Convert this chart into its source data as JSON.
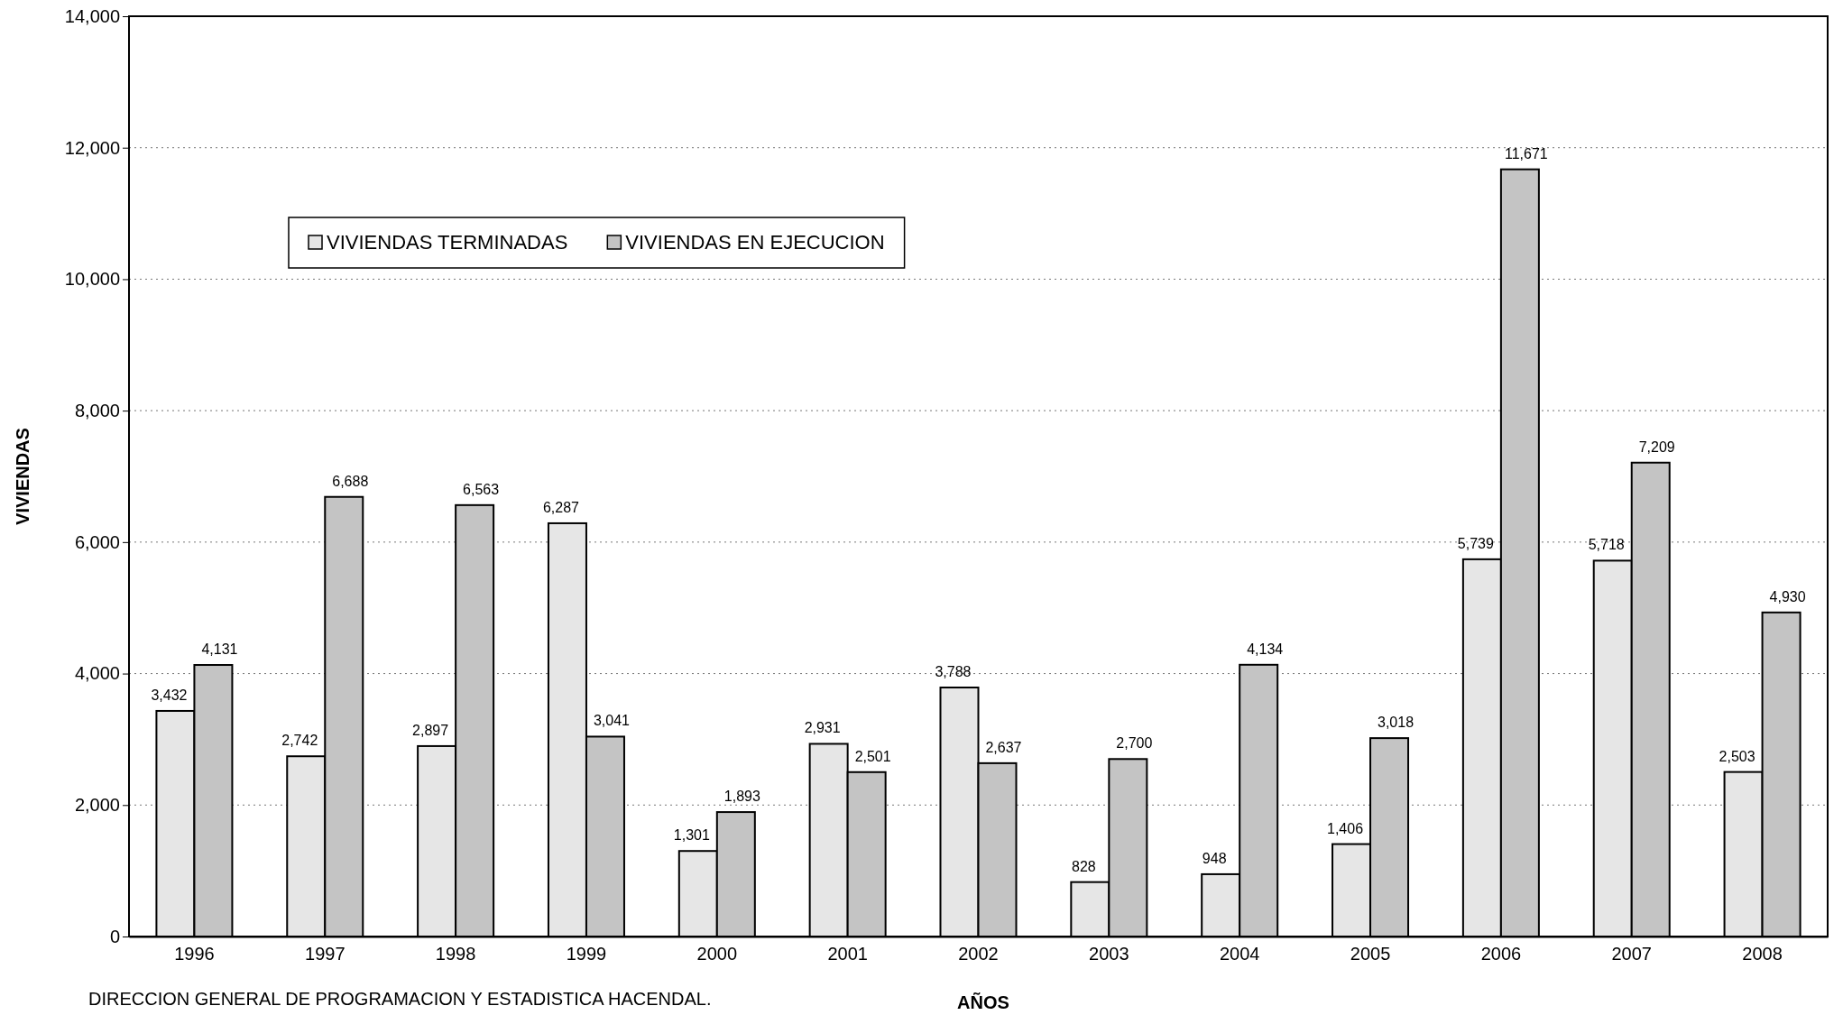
{
  "chart_data": {
    "type": "bar",
    "xlabel": "AÑOS",
    "ylabel": "VIVIENDAS",
    "categories": [
      "1996",
      "1997",
      "1998",
      "1999",
      "2000",
      "2001",
      "2002",
      "2003",
      "2004",
      "2005",
      "2006",
      "2007",
      "2008"
    ],
    "series": [
      {
        "name": "VIVIENDAS TERMINADAS",
        "color": "#e6e6e6",
        "values": [
          3432,
          2742,
          2897,
          6287,
          1301,
          2931,
          3788,
          828,
          948,
          1406,
          5739,
          5718,
          2503
        ],
        "value_labels": [
          "3,432",
          "2,742",
          "2,897",
          "6,287",
          "1,301",
          "2,931",
          "3,788",
          "828",
          "948",
          "1,406",
          "5,739",
          "5,718",
          "2,503"
        ]
      },
      {
        "name": "VIVIENDAS EN EJECUCION",
        "color": "#c4c4c4",
        "values": [
          4131,
          6688,
          6563,
          3041,
          1893,
          2501,
          2637,
          2700,
          4134,
          3018,
          11671,
          7209,
          4930
        ],
        "value_labels": [
          "4,131",
          "6,688",
          "6,563",
          "3,041",
          "1,893",
          "2,501",
          "2,637",
          "2,700",
          "4,134",
          "3,018",
          "11,671",
          "7,209",
          "4,930"
        ]
      }
    ],
    "ylim": [
      0,
      14000
    ],
    "yticks": [
      {
        "value": 0,
        "label": "0"
      },
      {
        "value": 2000,
        "label": "2,000"
      },
      {
        "value": 4000,
        "label": "4,000"
      },
      {
        "value": 6000,
        "label": "6,000"
      },
      {
        "value": 8000,
        "label": "8,000"
      },
      {
        "value": 10000,
        "label": "10,000"
      },
      {
        "value": 12000,
        "label": "12,000"
      },
      {
        "value": 14000,
        "label": "14,000"
      }
    ],
    "grid": "y",
    "legend": "top left",
    "annotations": [
      "DIRECCION GENERAL DE PROGRAMACION Y ESTADISTICA HACENDAL."
    ]
  }
}
